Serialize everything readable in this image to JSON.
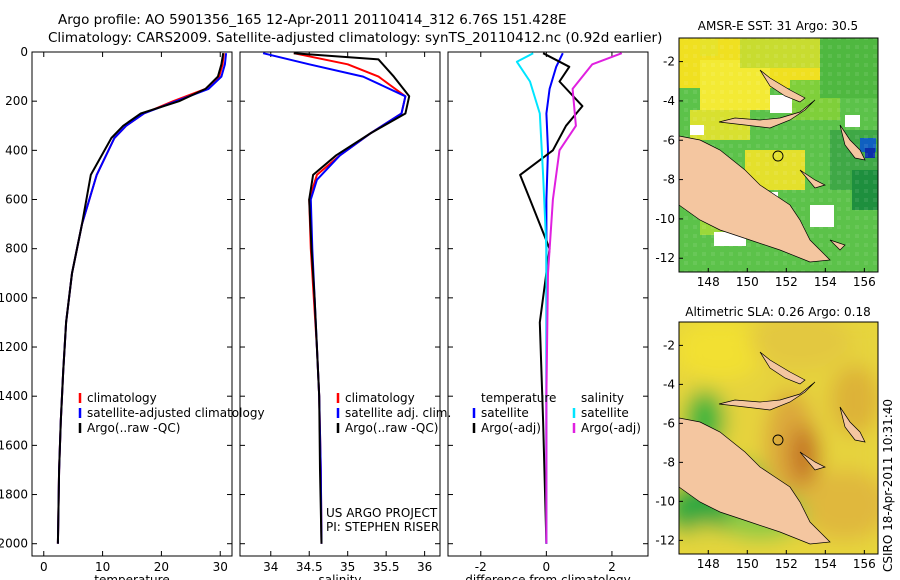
{
  "header": {
    "line1": "Argo profile: AO 5901356_165 12-Apr-2011 20110414_312 6.76S 151.428E",
    "line2": "Climatology: CARS2009. Satellite-adjusted climatology: synTS_20110412.nc (0.92d earlier)"
  },
  "side_stamp": "CSIRO 18-Apr-2011 10:31:40",
  "chart_data": [
    {
      "id": "temperature",
      "type": "line",
      "xlabel": "temperature",
      "ylabel": "",
      "xlim": [
        -2,
        32
      ],
      "ylim": [
        2050,
        0
      ],
      "y_reversed": true,
      "xticks": [
        0,
        10,
        20,
        30
      ],
      "yticks": [
        0,
        200,
        400,
        600,
        800,
        1000,
        1200,
        1400,
        1600,
        1800,
        2000
      ],
      "legend": {
        "placement": "lower-right",
        "entries": [
          "climatology",
          "satellite-adjusted climatology",
          "Argo(..raw -QC)"
        ]
      },
      "series": [
        {
          "name": "climatology",
          "color": "#ff0000",
          "x": [
            30.6,
            30.4,
            29.8,
            27.5,
            22,
            17,
            14,
            12,
            9,
            6.5,
            4.8,
            3.8,
            3.3,
            2.9,
            2.6,
            2.4
          ],
          "y": [
            5,
            50,
            100,
            150,
            200,
            250,
            300,
            350,
            500,
            700,
            900,
            1100,
            1300,
            1500,
            1700,
            2000
          ]
        },
        {
          "name": "satellite-adjusted climatology",
          "color": "#0000ff",
          "x": [
            31.0,
            30.8,
            30.2,
            28,
            22.5,
            17,
            14,
            12,
            9,
            6.5,
            4.8,
            3.8,
            3.3,
            2.9,
            2.6,
            2.4
          ],
          "y": [
            5,
            50,
            100,
            150,
            200,
            250,
            300,
            350,
            500,
            700,
            900,
            1100,
            1300,
            1500,
            1700,
            2000
          ]
        },
        {
          "name": "Argo(..raw -QC)",
          "color": "#000000",
          "x": [
            30.5,
            30.2,
            29.6,
            27.5,
            23,
            16.5,
            13.5,
            11.5,
            8.0,
            6.5,
            4.8,
            3.8,
            3.3,
            2.9,
            2.6,
            2.4
          ],
          "y": [
            5,
            50,
            100,
            150,
            200,
            250,
            300,
            350,
            500,
            700,
            900,
            1100,
            1300,
            1500,
            1700,
            2000
          ]
        }
      ]
    },
    {
      "id": "salinity",
      "type": "line",
      "xlabel": "salinity",
      "ylabel": "",
      "xlim": [
        33.6,
        36.2
      ],
      "ylim": [
        2050,
        0
      ],
      "y_reversed": true,
      "xticks": [
        34,
        34.5,
        35,
        35.5,
        36
      ],
      "yticks": [
        0,
        200,
        400,
        600,
        800,
        1000,
        1200,
        1400,
        1600,
        1800,
        2000
      ],
      "legend": {
        "placement": "lower-right",
        "entries": [
          "climatology",
          "satellite adj. clim.",
          "Argo(..raw -QC)"
        ]
      },
      "annotation": [
        "US ARGO PROJECT",
        "PI: STEPHEN RISER"
      ],
      "series": [
        {
          "name": "climatology",
          "color": "#ff0000",
          "x": [
            34.3,
            35.0,
            35.4,
            35.75,
            35.7,
            35.3,
            34.9,
            34.6,
            34.5,
            34.52,
            34.56,
            34.6,
            34.63,
            34.65,
            34.66
          ],
          "y": [
            5,
            50,
            100,
            180,
            250,
            330,
            420,
            500,
            600,
            800,
            1000,
            1200,
            1400,
            1700,
            2000
          ]
        },
        {
          "name": "satellite adj. clim.",
          "color": "#0000ff",
          "x": [
            33.9,
            34.5,
            35.2,
            35.75,
            35.7,
            35.3,
            34.9,
            34.6,
            34.52,
            34.54,
            34.57,
            34.6,
            34.63,
            34.65,
            34.66
          ],
          "y": [
            5,
            50,
            100,
            180,
            250,
            330,
            420,
            520,
            600,
            800,
            1000,
            1200,
            1400,
            1700,
            2000
          ]
        },
        {
          "name": "Argo(..raw -QC)",
          "color": "#000000",
          "x": [
            34.3,
            35.4,
            35.6,
            35.8,
            35.75,
            35.3,
            34.85,
            34.55,
            34.5,
            34.53,
            34.57,
            34.6,
            34.63,
            34.64,
            34.66
          ],
          "y": [
            5,
            30,
            100,
            180,
            250,
            330,
            420,
            500,
            600,
            800,
            1000,
            1200,
            1400,
            1700,
            2000
          ]
        }
      ]
    },
    {
      "id": "difference",
      "type": "line",
      "xlabel": "difference from climatology",
      "ylabel": "",
      "xlim": [
        -3,
        3.1
      ],
      "ylim": [
        2050,
        0
      ],
      "y_reversed": true,
      "xticks": [
        -2,
        0,
        2
      ],
      "yticks": [
        0,
        200,
        400,
        600,
        800,
        1000,
        1200,
        1400,
        1600,
        1800,
        2000
      ],
      "legend": {
        "placement": "lower-right",
        "columns": [
          {
            "heading": "temperature",
            "entries": [
              "satellite",
              "Argo(-adj)"
            ]
          },
          {
            "heading": "salinity",
            "entries": [
              "satellite",
              "Argo(-adj)"
            ]
          }
        ]
      },
      "series": [
        {
          "name": "temperature satellite",
          "color": "#0000ff",
          "x": [
            0.5,
            0.3,
            0.1,
            0.0,
            0.05,
            0.0,
            0.0,
            0.0,
            0.0
          ],
          "y": [
            5,
            60,
            150,
            250,
            400,
            600,
            1000,
            1500,
            2000
          ]
        },
        {
          "name": "temperature Argo(-adj)",
          "color": "#000000",
          "x": [
            -0.1,
            0.7,
            0.4,
            1.1,
            0.6,
            0.2,
            -0.8,
            -0.5,
            0.1,
            -0.2,
            -0.1,
            0.0
          ],
          "y": [
            5,
            60,
            120,
            220,
            300,
            400,
            500,
            600,
            800,
            1100,
            1500,
            2000
          ]
        },
        {
          "name": "salinity satellite",
          "color": "#00e5ff",
          "x": [
            -0.4,
            -0.9,
            -0.5,
            -0.2,
            -0.1,
            0.0,
            0.0,
            0.0
          ],
          "y": [
            5,
            40,
            120,
            250,
            500,
            800,
            1400,
            2000
          ]
        },
        {
          "name": "salinity Argo(-adj)",
          "color": "#e020e0",
          "x": [
            2.3,
            1.4,
            0.8,
            0.9,
            0.4,
            0.2,
            0.05,
            0.0,
            0.0
          ],
          "y": [
            5,
            50,
            150,
            300,
            400,
            600,
            900,
            1400,
            2000
          ]
        }
      ]
    },
    {
      "id": "amsre-sst-map",
      "type": "heatmap",
      "title": "AMSR-E SST: 31 Argo: 30.5",
      "xlim": [
        146.5,
        156.7
      ],
      "ylim": [
        -12.7,
        -0.8
      ],
      "xticks": [
        148,
        150,
        152,
        154,
        156
      ],
      "yticks": [
        -2,
        -4,
        -6,
        -8,
        -10,
        -12
      ],
      "float_position": {
        "lon": 151.428,
        "lat": -6.76
      }
    },
    {
      "id": "altimetric-sla-map",
      "type": "heatmap",
      "title": "Altimetric SLA: 0.26 Argo: 0.18",
      "xlim": [
        146.5,
        156.7
      ],
      "ylim": [
        -12.7,
        -0.8
      ],
      "xticks": [
        148,
        150,
        152,
        154,
        156
      ],
      "yticks": [
        -2,
        -4,
        -6,
        -8,
        -10,
        -12
      ],
      "float_position": {
        "lon": 151.428,
        "lat": -6.76
      }
    }
  ]
}
